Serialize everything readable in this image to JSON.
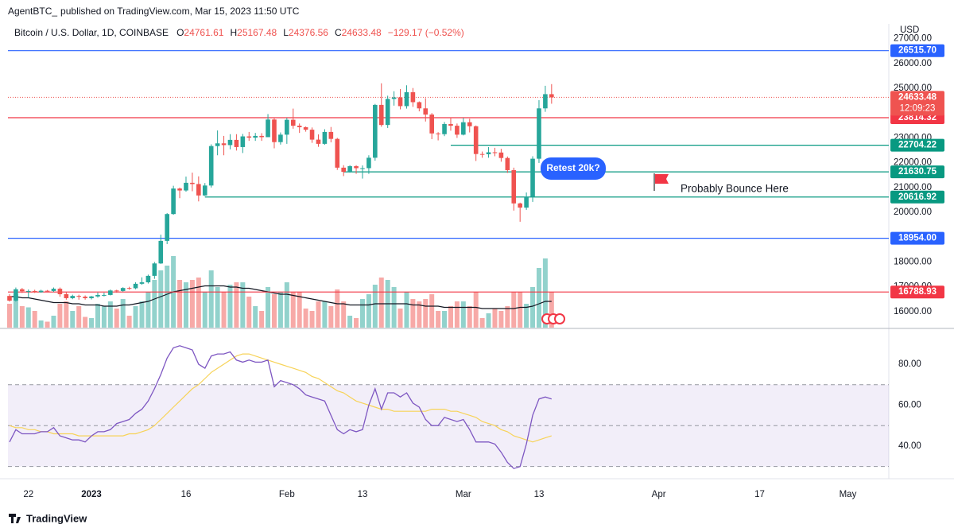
{
  "header": {
    "publisher": "AgentBTC_",
    "published": "published on TradingView.com, Mar 15, 2023 11:50 UTC"
  },
  "chart_data": {
    "type": "candlestick",
    "title": "Bitcoin / U.S. Dollar, 1D, COINBASE",
    "legend_keys": [
      "O",
      "H",
      "L",
      "C"
    ],
    "change": "−129.17 (−0.52%)",
    "y_unit": "USD",
    "countdown": "12:09:23",
    "up_color": "#26a69a",
    "down_color": "#ef5350",
    "volume_up_color": "#92d2cc",
    "volume_down_color": "#f7a9a7",
    "xlim": [
      -0.25,
      139.5
    ],
    "xticks": [
      {
        "value": 3,
        "label": "22"
      },
      {
        "value": 13,
        "label": "2023"
      },
      {
        "value": 28,
        "label": "16"
      },
      {
        "value": 44,
        "label": "Feb"
      },
      {
        "value": 56,
        "label": "13"
      },
      {
        "value": 72,
        "label": "Mar"
      },
      {
        "value": 84,
        "label": "13"
      },
      {
        "value": 103,
        "label": "Apr"
      },
      {
        "value": 119,
        "label": "17"
      },
      {
        "value": 133,
        "label": "May"
      }
    ],
    "ylim": [
      15353,
      27596
    ],
    "yticks": [
      {
        "value": 16000,
        "label": "16000.00"
      },
      {
        "value": 17000,
        "label": "17000.00"
      },
      {
        "value": 18000,
        "label": "18000.00"
      },
      {
        "value": 20000,
        "label": "20000.00"
      },
      {
        "value": 21000,
        "label": "21000.00"
      },
      {
        "value": 22000,
        "label": "22000.00"
      },
      {
        "value": 23000,
        "label": "23000.00"
      },
      {
        "value": 25000,
        "label": "25000.00"
      },
      {
        "value": 26000,
        "label": "26000.00"
      },
      {
        "value": 27000,
        "label": "27000.00"
      }
    ],
    "open": [
      16630,
      16440,
      16900,
      16820,
      16830,
      16780,
      16840,
      16830,
      16920,
      16700,
      16540,
      16630,
      16600,
      16540,
      16610,
      16670,
      16670,
      16850,
      16830,
      16950,
      16940,
      17120,
      17180,
      17440,
      17940,
      18850,
      19930,
      20960,
      20880,
      21190,
      21140,
      20680,
      21080,
      22670,
      22780,
      22710,
      22920,
      22630,
      23060,
      23010,
      23080,
      23030,
      23740,
      22830,
      23130,
      23730,
      23490,
      23430,
      23330,
      22930,
      22760,
      23240,
      22960,
      21800,
      21630,
      21860,
      21780,
      21780,
      22200,
      24330,
      23520,
      24570,
      24630,
      24280,
      24840,
      24440,
      24190,
      23940,
      23180,
      23150,
      23560,
      23490,
      23130,
      23630,
      23470,
      22350,
      22340,
      22420,
      22410,
      22190,
      21700,
      20360,
      20190,
      20630,
      22160,
      24190,
      24761.61
    ],
    "high": [
      16700,
      16970,
      16950,
      16890,
      16880,
      16880,
      16870,
      16970,
      16970,
      16790,
      16680,
      16680,
      16650,
      16630,
      16770,
      16760,
      16890,
      16880,
      16980,
      17000,
      17180,
      17380,
      17490,
      18000,
      19100,
      19970,
      21070,
      21000,
      21440,
      21600,
      21450,
      21180,
      22740,
      23300,
      23080,
      23150,
      23150,
      23160,
      23240,
      23200,
      23190,
      23960,
      23790,
      23220,
      23810,
      24180,
      23580,
      23460,
      23420,
      23140,
      23350,
      23440,
      23000,
      21900,
      21900,
      21900,
      21890,
      22300,
      24370,
      25200,
      24700,
      24880,
      24970,
      25120,
      25010,
      24470,
      24600,
      24000,
      23230,
      23640,
      23830,
      23580,
      23800,
      23770,
      23500,
      22450,
      22630,
      22600,
      22560,
      22250,
      21800,
      20390,
      20800,
      22260,
      24520,
      25100,
      25167.48
    ],
    "low": [
      16400,
      16400,
      16750,
      16560,
      16750,
      16760,
      16800,
      16790,
      16600,
      16480,
      16500,
      16480,
      16480,
      16490,
      16560,
      16610,
      16650,
      16760,
      16800,
      16880,
      16900,
      17080,
      17130,
      17320,
      17920,
      18720,
      19900,
      20570,
      20830,
      20850,
      20440,
      20660,
      21000,
      22300,
      22300,
      22540,
      22490,
      22390,
      22880,
      22880,
      22880,
      23030,
      22580,
      22730,
      22760,
      23370,
      23200,
      23250,
      22800,
      22640,
      22720,
      22820,
      21710,
      21460,
      21600,
      21550,
      21360,
      21550,
      22080,
      23450,
      23400,
      24300,
      24150,
      24180,
      24250,
      24070,
      23660,
      22950,
      22900,
      23070,
      23290,
      23000,
      23100,
      23220,
      22070,
      22200,
      22200,
      22260,
      22040,
      21590,
      20070,
      19620,
      20100,
      20420,
      21990,
      24050,
      24376.56
    ],
    "close": [
      16440,
      16900,
      16820,
      16830,
      16780,
      16840,
      16830,
      16920,
      16700,
      16540,
      16630,
      16600,
      16540,
      16610,
      16670,
      16670,
      16850,
      16830,
      16950,
      16940,
      17120,
      17180,
      17440,
      17940,
      18850,
      19930,
      20960,
      20880,
      21190,
      21140,
      20680,
      21080,
      22670,
      22780,
      22710,
      22920,
      22630,
      23060,
      23010,
      23080,
      23030,
      23740,
      22830,
      23130,
      23730,
      23490,
      23430,
      23330,
      22930,
      22760,
      23240,
      22960,
      21800,
      21630,
      21860,
      21780,
      21780,
      22200,
      24330,
      23520,
      24570,
      24630,
      24280,
      24840,
      24440,
      24190,
      23940,
      23180,
      23150,
      23560,
      23490,
      23130,
      23630,
      23470,
      22350,
      22340,
      22420,
      22410,
      22190,
      21700,
      20360,
      20190,
      20630,
      22160,
      24190,
      24762,
      24633.48
    ],
    "volume": [
      20,
      28,
      18,
      17,
      14,
      6,
      5,
      10,
      20,
      22,
      14,
      18,
      9,
      8,
      20,
      18,
      22,
      16,
      24,
      10,
      18,
      22,
      30,
      40,
      48,
      52,
      60,
      40,
      38,
      40,
      42,
      30,
      48,
      34,
      30,
      36,
      38,
      38,
      26,
      18,
      14,
      34,
      28,
      30,
      38,
      30,
      30,
      16,
      14,
      22,
      22,
      18,
      32,
      22,
      10,
      8,
      24,
      28,
      36,
      42,
      40,
      34,
      16,
      30,
      24,
      22,
      24,
      28,
      14,
      14,
      18,
      22,
      22,
      18,
      30,
      8,
      12,
      16,
      14,
      18,
      30,
      30,
      20,
      34,
      50,
      58,
      30
    ],
    "volume_ma": [
      26,
      26,
      25,
      25,
      24,
      23,
      22,
      21,
      21,
      21,
      20,
      20,
      19,
      19,
      19,
      18,
      18,
      18,
      19,
      19,
      20,
      21,
      22,
      24,
      26,
      28,
      30,
      31,
      32,
      33,
      34,
      35,
      35,
      35,
      35,
      34,
      34,
      33,
      33,
      32,
      31,
      30,
      29,
      28,
      28,
      27,
      26,
      25,
      24,
      23,
      22,
      21,
      20,
      20,
      19,
      19,
      19,
      19,
      20,
      20,
      20,
      20,
      20,
      20,
      19,
      19,
      18,
      18,
      18,
      17,
      17,
      17,
      17,
      17,
      17,
      16,
      16,
      16,
      16,
      16,
      16,
      17,
      17,
      18,
      20,
      22,
      22
    ],
    "volume_ma_color": "#131722",
    "levels": [
      {
        "value": 26515.7,
        "label": "26515.70",
        "color": "#2962ff"
      },
      {
        "value": 23814.32,
        "label": "23814.32",
        "color": "#f23645"
      },
      {
        "value": 22704.22,
        "label": "22704.22",
        "color": "#089981",
        "from": 70
      },
      {
        "value": 21630.75,
        "label": "21630.75",
        "color": "#089981",
        "from": 53
      },
      {
        "value": 20616.92,
        "label": "20616.92",
        "color": "#089981",
        "from": 31
      },
      {
        "value": 18954,
        "label": "18954.00",
        "color": "#2962ff"
      },
      {
        "value": 16788.93,
        "label": "16788.93",
        "color": "#f23645"
      }
    ],
    "annotations": [
      {
        "text": "Retest 20k?"
      },
      {
        "text": "Probably Bounce Here"
      }
    ],
    "rsi": {
      "color": "#7e57c2",
      "ma_color": "#f7d358",
      "ylim": [
        25.6,
        96.7
      ],
      "yticks": [
        {
          "value": 40,
          "label": "40.00"
        },
        {
          "value": 60,
          "label": "60.00"
        },
        {
          "value": 80,
          "label": "80.00"
        }
      ],
      "band": [
        30,
        70
      ],
      "midline": 50,
      "values": [
        42,
        48,
        46,
        46,
        46,
        47,
        47,
        49,
        45,
        44,
        43,
        43,
        42,
        45,
        47,
        47,
        48,
        51,
        52,
        53,
        56,
        58,
        62,
        68,
        75,
        83,
        88,
        89,
        88,
        87,
        80,
        78,
        84,
        85,
        85,
        86,
        82,
        81,
        82,
        81,
        81,
        82,
        69,
        72,
        71,
        70,
        68,
        65,
        64,
        63,
        62,
        55,
        48,
        46,
        48,
        47,
        48,
        60,
        68,
        58,
        66,
        66,
        64,
        66,
        61,
        59,
        53,
        50,
        50,
        54,
        53,
        52,
        53,
        48,
        42,
        42,
        42,
        41,
        37,
        32,
        29,
        30,
        41,
        55,
        63,
        64,
        63
      ],
      "ma": [
        50,
        49,
        49,
        48,
        48,
        47,
        47,
        46,
        46,
        46,
        46,
        45,
        45,
        45,
        45,
        45,
        45,
        45,
        45,
        46,
        46,
        47,
        48,
        50,
        53,
        56,
        59,
        62,
        65,
        68,
        70,
        73,
        76,
        78,
        80,
        82,
        84,
        85,
        85,
        84,
        83,
        82,
        81,
        80,
        79,
        78,
        77,
        76,
        74,
        73,
        71,
        69,
        67,
        66,
        64,
        62,
        61,
        60,
        59,
        58,
        58,
        57,
        57,
        57,
        57,
        57,
        57,
        58,
        58,
        58,
        57,
        57,
        56,
        55,
        54,
        52,
        51,
        50,
        48,
        47,
        45,
        44,
        43,
        42,
        43,
        44,
        45
      ]
    }
  },
  "footer": {
    "brand": "TradingView"
  }
}
